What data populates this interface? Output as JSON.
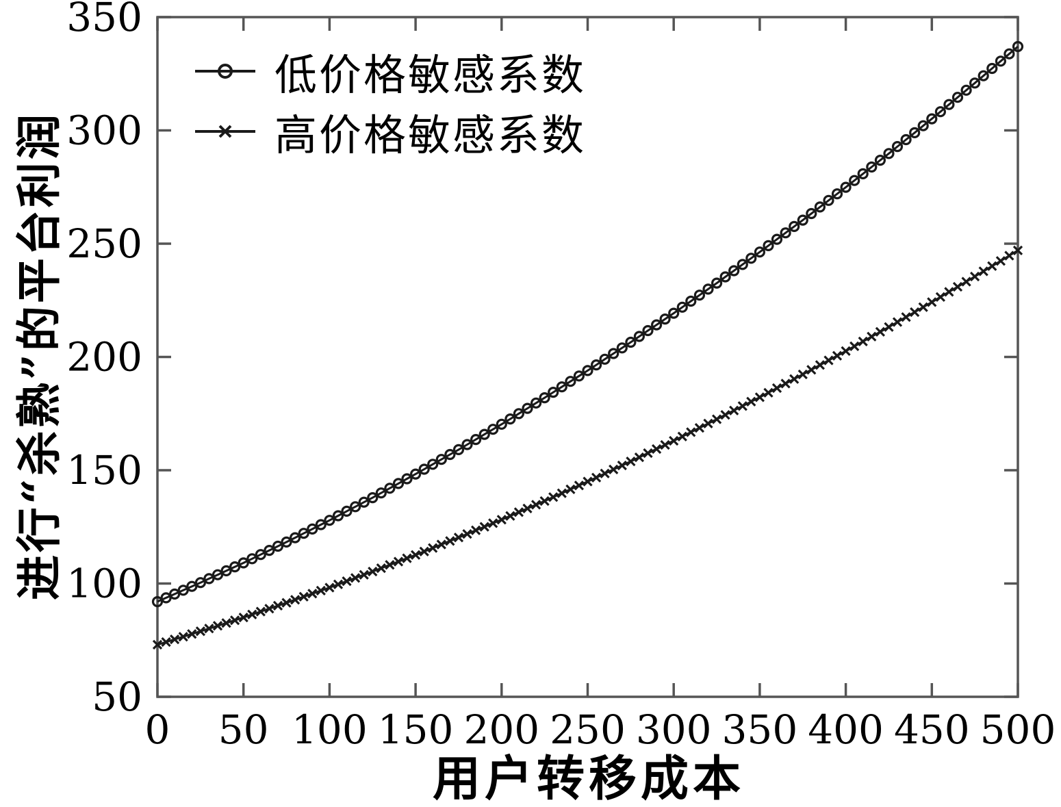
{
  "figure": {
    "background": "#ffffff",
    "axis_color": "#555555",
    "text_color": "#000000"
  },
  "chart_data": {
    "type": "line",
    "title": "",
    "xlabel": "用户转移成本",
    "ylabel": "进行“杀熟”的平台利润",
    "xlim": [
      0,
      500
    ],
    "ylim": [
      50,
      350
    ],
    "x_ticks": [
      0,
      50,
      100,
      150,
      200,
      250,
      300,
      350,
      400,
      450,
      500
    ],
    "y_ticks": [
      50,
      100,
      150,
      200,
      250,
      300,
      350
    ],
    "grid": false,
    "legend_position": "top-left",
    "marker_step": 5,
    "x": [
      0,
      25,
      50,
      75,
      100,
      125,
      150,
      175,
      200,
      225,
      250,
      275,
      300,
      325,
      350,
      375,
      400,
      425,
      450,
      475,
      500
    ],
    "series": [
      {
        "name": "低价格敏感系数",
        "marker": "circle",
        "color": "#1a1a1a",
        "values": [
          92.0,
          100.4,
          109.1,
          118.3,
          127.9,
          137.9,
          148.3,
          159.1,
          170.3,
          182.0,
          194.0,
          206.5,
          219.3,
          232.6,
          246.3,
          260.4,
          274.9,
          289.8,
          305.1,
          320.9,
          337.0
        ]
      },
      {
        "name": "高价格敏感系数",
        "marker": "x",
        "color": "#1a1a1a",
        "values": [
          73.0,
          78.9,
          85.0,
          91.5,
          98.2,
          105.3,
          112.6,
          120.3,
          128.2,
          136.4,
          145.0,
          153.9,
          163.0,
          172.5,
          182.2,
          192.3,
          202.6,
          213.2,
          224.2,
          235.5,
          247.0
        ]
      }
    ]
  }
}
